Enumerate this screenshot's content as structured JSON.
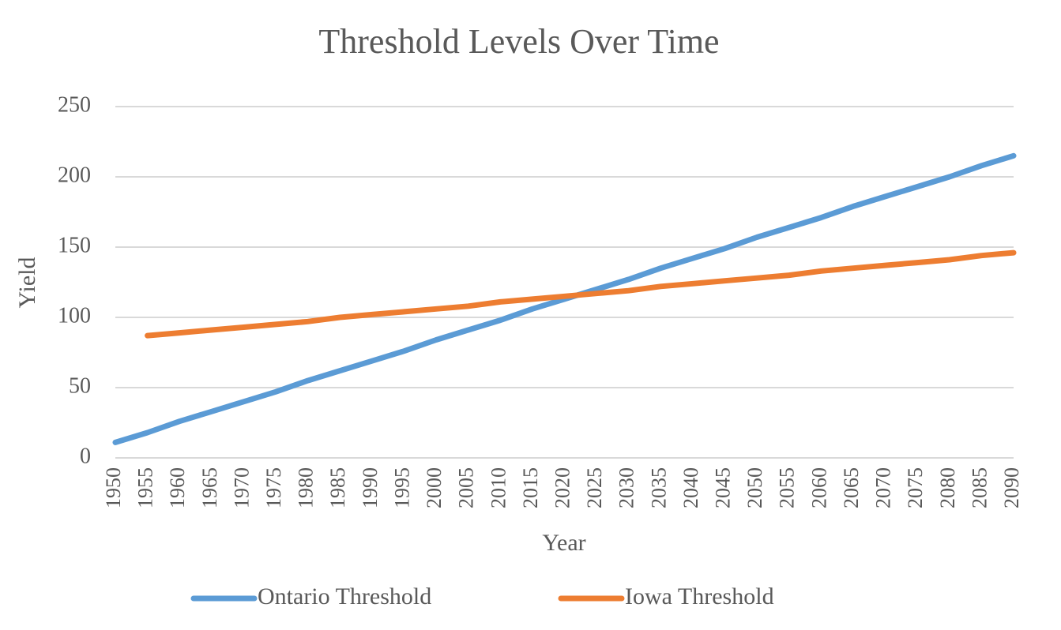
{
  "chart_data": {
    "type": "line",
    "title": "Threshold Levels Over Time",
    "xlabel": "Year",
    "ylabel": "Yield",
    "x": [
      1950,
      1955,
      1960,
      1965,
      1970,
      1975,
      1980,
      1985,
      1990,
      1995,
      2000,
      2005,
      2010,
      2015,
      2020,
      2025,
      2030,
      2035,
      2040,
      2045,
      2050,
      2055,
      2060,
      2065,
      2070,
      2075,
      2080,
      2085,
      2090
    ],
    "series": [
      {
        "name": "Ontario Threshold",
        "color": "#5b9bd5",
        "values": [
          11,
          18,
          26,
          33,
          40,
          47,
          55,
          62,
          69,
          76,
          84,
          91,
          98,
          106,
          113,
          120,
          127,
          135,
          142,
          149,
          157,
          164,
          171,
          179,
          186,
          193,
          200,
          208,
          215
        ]
      },
      {
        "name": "Iowa Threshold",
        "color": "#ed7d31",
        "values": [
          null,
          87,
          89,
          91,
          93,
          95,
          97,
          100,
          102,
          104,
          106,
          108,
          111,
          113,
          115,
          117,
          119,
          122,
          124,
          126,
          128,
          130,
          133,
          135,
          137,
          139,
          141,
          144,
          146
        ]
      }
    ],
    "xlim": [
      1950,
      2090
    ],
    "xticks": [
      1950,
      1955,
      1960,
      1965,
      1970,
      1975,
      1980,
      1985,
      1990,
      1995,
      2000,
      2005,
      2010,
      2015,
      2020,
      2025,
      2030,
      2035,
      2040,
      2045,
      2050,
      2055,
      2060,
      2065,
      2070,
      2075,
      2080,
      2085,
      2090
    ],
    "ylim": [
      0,
      250
    ],
    "yticks": [
      0,
      50,
      100,
      150,
      200,
      250
    ],
    "grid": true,
    "legend": "bottom"
  }
}
